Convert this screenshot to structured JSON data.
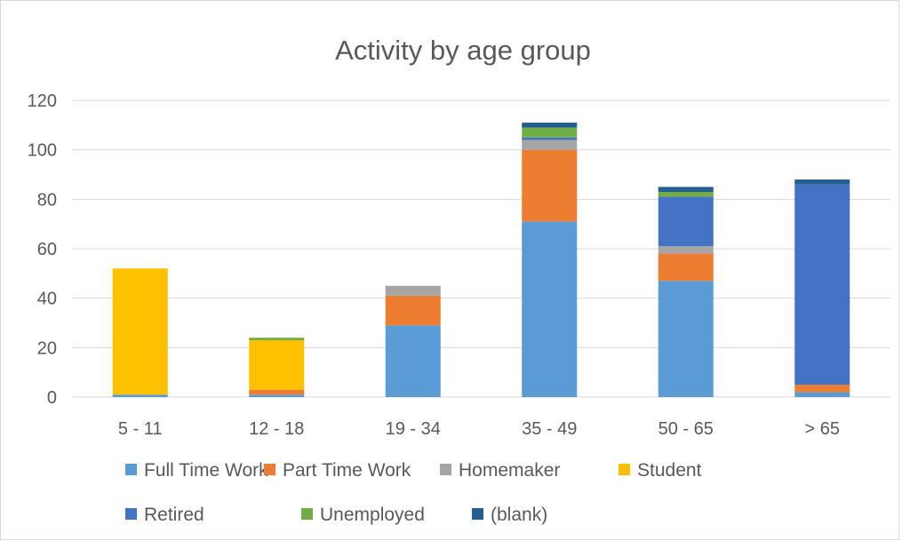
{
  "chart_data": {
    "type": "bar",
    "stacked": true,
    "title": "Activity by age group",
    "xlabel": "",
    "ylabel": "",
    "ylim": [
      0,
      120
    ],
    "yticks": [
      0,
      20,
      40,
      60,
      80,
      100,
      120
    ],
    "grid": true,
    "legend_position": "bottom",
    "categories": [
      "5 - 11",
      "12 - 18",
      "19 - 34",
      "35 - 49",
      "50 - 65",
      "> 65"
    ],
    "series": [
      {
        "name": "Full Time Work",
        "color": "#5b9bd5",
        "values": [
          1,
          1,
          29,
          71,
          47,
          2
        ]
      },
      {
        "name": "Part Time Work",
        "color": "#ed7d31",
        "values": [
          0,
          2,
          12,
          29,
          11,
          3
        ]
      },
      {
        "name": "Homemaker",
        "color": "#a5a5a5",
        "values": [
          0,
          0,
          4,
          4,
          3,
          0
        ]
      },
      {
        "name": "Student",
        "color": "#ffc000",
        "values": [
          51,
          20,
          0,
          0,
          0,
          0
        ]
      },
      {
        "name": "Retired",
        "color": "#4472c4",
        "values": [
          0,
          0,
          0,
          1,
          20,
          81
        ]
      },
      {
        "name": "Unemployed",
        "color": "#70ad47",
        "values": [
          0,
          1,
          0,
          4,
          2,
          0
        ]
      },
      {
        "name": "(blank)",
        "color": "#255e91",
        "values": [
          0,
          0,
          0,
          2,
          2,
          2
        ]
      }
    ]
  }
}
